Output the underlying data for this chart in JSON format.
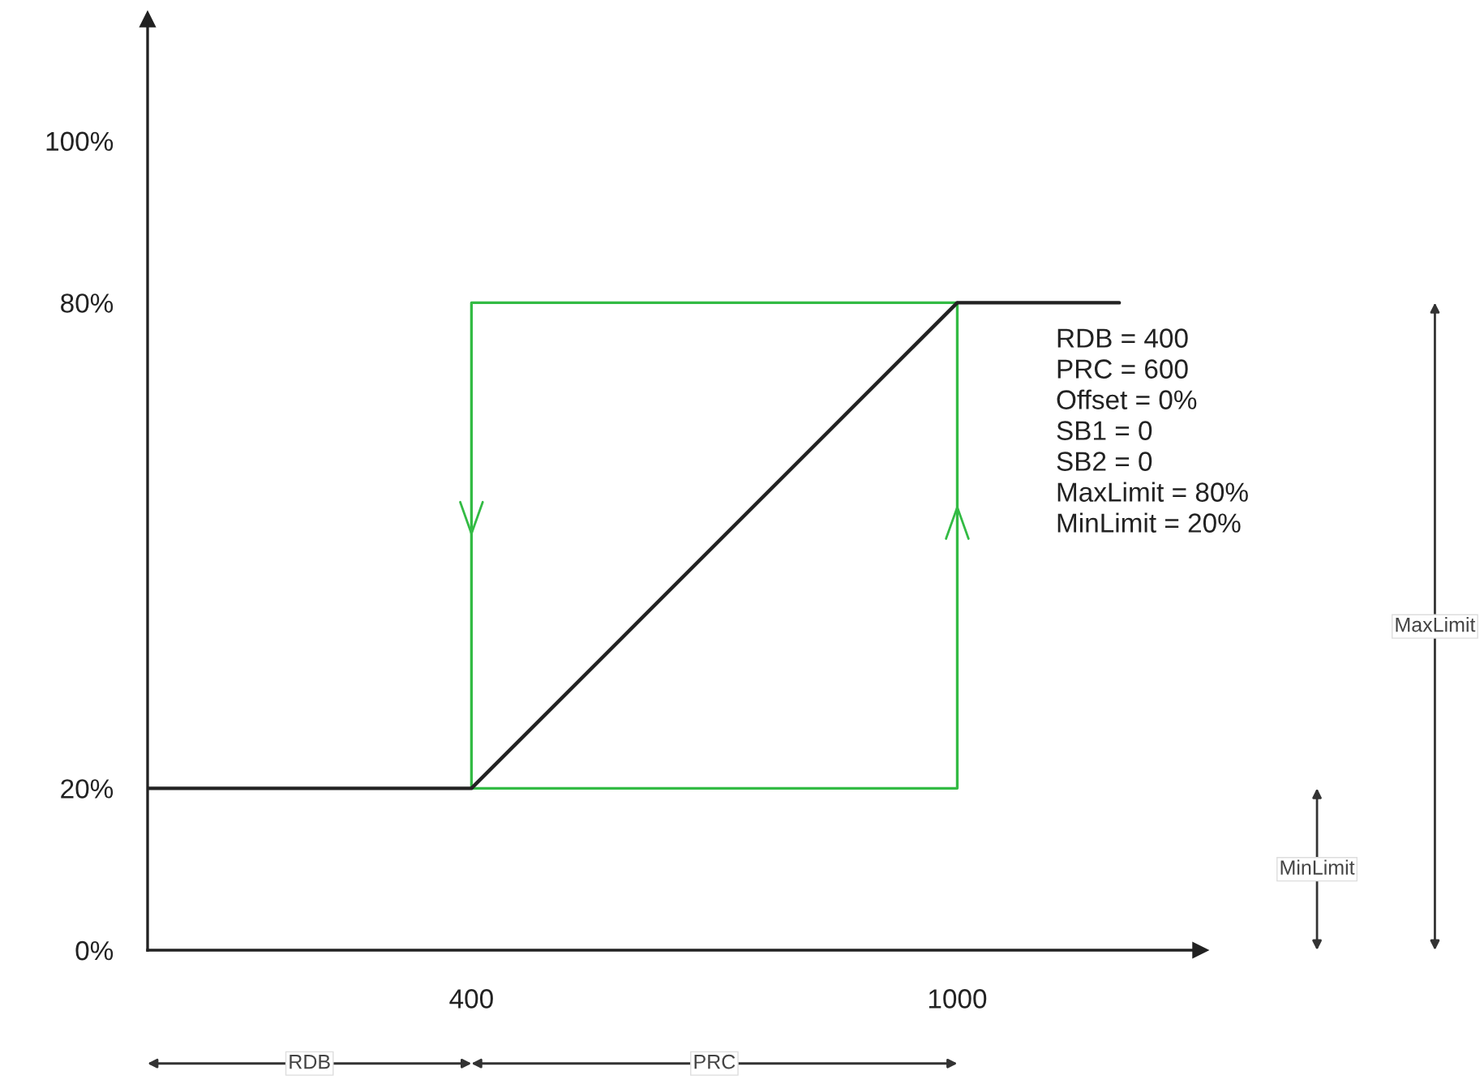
{
  "chart_data": {
    "type": "line",
    "series": [
      {
        "color": "#222222",
        "x": [
          0,
          400,
          1000,
          1200
        ],
        "values": [
          20,
          20,
          80,
          80
        ]
      },
      {
        "color": "#33bb44",
        "x": [
          400,
          400,
          1000
        ],
        "values": [
          20,
          80,
          80
        ]
      },
      {
        "color": "#33bb44",
        "x": [
          400,
          1000,
          1000
        ],
        "values": [
          20,
          20,
          80
        ]
      }
    ],
    "xlim": [
      0,
      1300
    ],
    "ylim": [
      0,
      115
    ],
    "xticks": [
      400,
      1000
    ],
    "yticks": [
      {
        "value": 0,
        "label": "0%"
      },
      {
        "value": 20,
        "label": "20%"
      },
      {
        "value": 80,
        "label": "80%"
      },
      {
        "value": 100,
        "label": "100%"
      }
    ],
    "annotations": [
      "RDB",
      "PRC",
      "MinLimit",
      "MaxLimit",
      "RDB = 400",
      "PRC = 600",
      "Offset = 0%",
      "SB1 = 0",
      "SB2 = 0",
      "MaxLimit = 80%",
      "MinLimit = 20%"
    ],
    "grid": false,
    "marker": "none",
    "line_style": "solid"
  }
}
